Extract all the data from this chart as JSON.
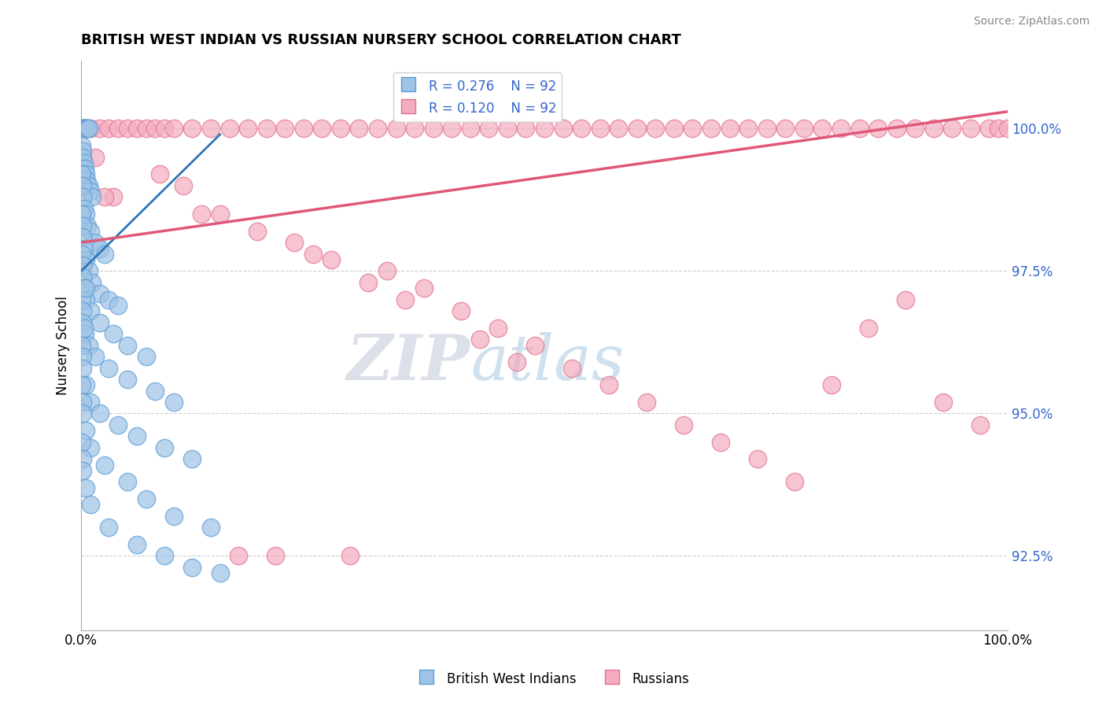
{
  "title": "BRITISH WEST INDIAN VS RUSSIAN NURSERY SCHOOL CORRELATION CHART",
  "source": "Source: ZipAtlas.com",
  "ylabel": "Nursery School",
  "yticks": [
    92.5,
    95.0,
    97.5,
    100.0
  ],
  "ytick_labels": [
    "92.5%",
    "95.0%",
    "97.5%",
    "100.0%"
  ],
  "xmin": 0.0,
  "xmax": 100.0,
  "ymin": 91.2,
  "ymax": 101.2,
  "legend_blue_r": "R = 0.276",
  "legend_blue_n": "N = 92",
  "legend_pink_r": "R = 0.120",
  "legend_pink_n": "N = 92",
  "legend_blue_label": "British West Indians",
  "legend_pink_label": "Russians",
  "blue_color": "#9DC3E6",
  "pink_color": "#F4ACBE",
  "blue_edge": "#5B9BD5",
  "pink_edge": "#E07090",
  "blue_scatter_x": [
    0.1,
    0.15,
    0.2,
    0.25,
    0.3,
    0.4,
    0.5,
    0.6,
    0.7,
    0.8,
    0.1,
    0.15,
    0.2,
    0.3,
    0.4,
    0.5,
    0.6,
    0.8,
    1.0,
    1.2,
    0.1,
    0.15,
    0.2,
    0.3,
    0.5,
    0.7,
    1.0,
    1.5,
    2.0,
    2.5,
    0.1,
    0.15,
    0.2,
    0.3,
    0.5,
    0.8,
    1.2,
    2.0,
    3.0,
    4.0,
    0.1,
    0.15,
    0.2,
    0.3,
    0.5,
    1.0,
    2.0,
    3.5,
    5.0,
    7.0,
    0.1,
    0.15,
    0.2,
    0.4,
    0.8,
    1.5,
    3.0,
    5.0,
    8.0,
    10.0,
    0.1,
    0.15,
    0.2,
    0.5,
    1.0,
    2.0,
    4.0,
    6.0,
    9.0,
    12.0,
    0.1,
    0.15,
    0.2,
    0.5,
    1.0,
    2.5,
    5.0,
    7.0,
    10.0,
    14.0,
    0.1,
    0.15,
    0.2,
    0.5,
    1.0,
    3.0,
    6.0,
    9.0,
    12.0,
    15.0,
    0.3,
    0.5
  ],
  "blue_scatter_y": [
    100.0,
    100.0,
    100.0,
    100.0,
    100.0,
    100.0,
    100.0,
    100.0,
    100.0,
    100.0,
    99.7,
    99.6,
    99.5,
    99.4,
    99.3,
    99.2,
    99.1,
    99.0,
    98.9,
    98.8,
    99.2,
    99.0,
    98.8,
    98.6,
    98.5,
    98.3,
    98.2,
    98.0,
    97.9,
    97.8,
    98.5,
    98.3,
    98.1,
    97.9,
    97.7,
    97.5,
    97.3,
    97.1,
    97.0,
    96.9,
    97.8,
    97.6,
    97.4,
    97.2,
    97.0,
    96.8,
    96.6,
    96.4,
    96.2,
    96.0,
    97.0,
    96.8,
    96.6,
    96.4,
    96.2,
    96.0,
    95.8,
    95.6,
    95.4,
    95.2,
    96.2,
    96.0,
    95.8,
    95.5,
    95.2,
    95.0,
    94.8,
    94.6,
    94.4,
    94.2,
    95.5,
    95.2,
    95.0,
    94.7,
    94.4,
    94.1,
    93.8,
    93.5,
    93.2,
    93.0,
    94.5,
    94.2,
    94.0,
    93.7,
    93.4,
    93.0,
    92.7,
    92.5,
    92.3,
    92.2,
    96.5,
    97.2
  ],
  "pink_scatter_x": [
    0.5,
    1.0,
    2.0,
    3.0,
    4.0,
    5.0,
    6.0,
    7.0,
    8.0,
    9.0,
    10.0,
    12.0,
    14.0,
    16.0,
    18.0,
    20.0,
    22.0,
    24.0,
    26.0,
    28.0,
    30.0,
    32.0,
    34.0,
    36.0,
    38.0,
    40.0,
    42.0,
    44.0,
    46.0,
    48.0,
    50.0,
    52.0,
    54.0,
    56.0,
    58.0,
    60.0,
    62.0,
    64.0,
    66.0,
    68.0,
    70.0,
    72.0,
    74.0,
    76.0,
    78.0,
    80.0,
    82.0,
    84.0,
    86.0,
    88.0,
    90.0,
    92.0,
    94.0,
    96.0,
    98.0,
    99.0,
    100.0,
    1.5,
    3.5,
    11.0,
    15.0,
    19.0,
    25.0,
    33.0,
    37.0,
    41.0,
    45.0,
    49.0,
    53.0,
    57.0,
    61.0,
    65.0,
    69.0,
    73.0,
    77.0,
    81.0,
    85.0,
    89.0,
    93.0,
    97.0,
    2.5,
    8.5,
    13.0,
    23.0,
    27.0,
    31.0,
    35.0,
    43.0,
    47.0,
    17.0,
    21.0,
    29.0
  ],
  "pink_scatter_y": [
    100.0,
    100.0,
    100.0,
    100.0,
    100.0,
    100.0,
    100.0,
    100.0,
    100.0,
    100.0,
    100.0,
    100.0,
    100.0,
    100.0,
    100.0,
    100.0,
    100.0,
    100.0,
    100.0,
    100.0,
    100.0,
    100.0,
    100.0,
    100.0,
    100.0,
    100.0,
    100.0,
    100.0,
    100.0,
    100.0,
    100.0,
    100.0,
    100.0,
    100.0,
    100.0,
    100.0,
    100.0,
    100.0,
    100.0,
    100.0,
    100.0,
    100.0,
    100.0,
    100.0,
    100.0,
    100.0,
    100.0,
    100.0,
    100.0,
    100.0,
    100.0,
    100.0,
    100.0,
    100.0,
    100.0,
    100.0,
    100.0,
    99.5,
    98.8,
    99.0,
    98.5,
    98.2,
    97.8,
    97.5,
    97.2,
    96.8,
    96.5,
    96.2,
    95.8,
    95.5,
    95.2,
    94.8,
    94.5,
    94.2,
    93.8,
    95.5,
    96.5,
    97.0,
    95.2,
    94.8,
    98.8,
    99.2,
    98.5,
    98.0,
    97.7,
    97.3,
    97.0,
    96.3,
    95.9,
    92.5,
    92.5,
    92.5
  ],
  "blue_trend_x": [
    0.0,
    15.0
  ],
  "blue_trend_y": [
    98.2,
    100.0
  ],
  "pink_trend_x": [
    0.0,
    100.0
  ],
  "pink_trend_y": [
    98.5,
    100.2
  ],
  "watermark_zip": "ZIP",
  "watermark_atlas": "atlas",
  "background_color": "#ffffff",
  "grid_color": "#cccccc"
}
